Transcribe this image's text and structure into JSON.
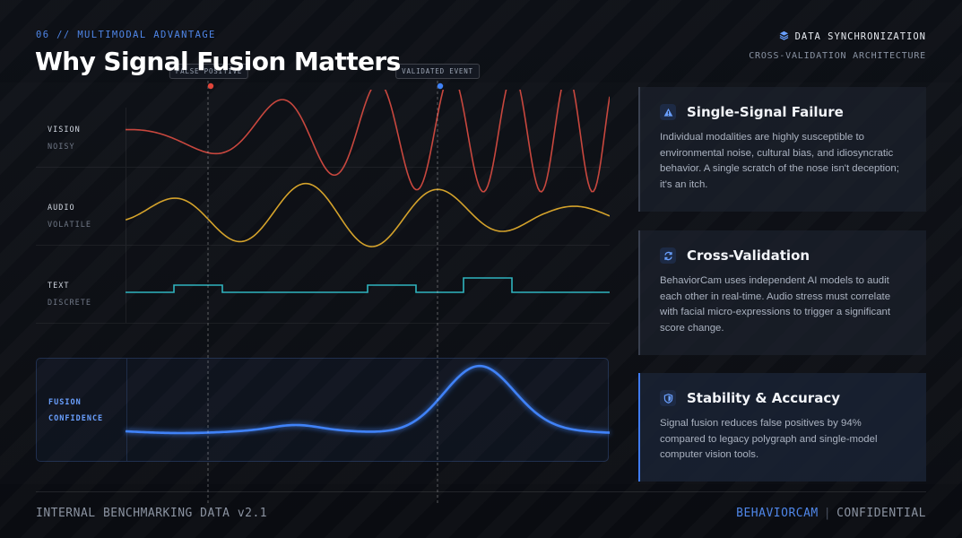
{
  "header": {
    "kicker": "06 // MULTIMODAL ADVANTAGE",
    "title": "Why Signal Fusion Matters",
    "sync_label": "DATA SYNCHRONIZATION",
    "sync_sub": "CROSS-VALIDATION ARCHITECTURE",
    "sync_icon": "layers-icon"
  },
  "lanes": [
    {
      "name": "VISION",
      "sub": "NOISY",
      "color": "#c8473e"
    },
    {
      "name": "AUDIO",
      "sub": "VOLATILE",
      "color": "#d4a22b"
    },
    {
      "name": "TEXT",
      "sub": "DISCRETE",
      "color": "#2fb4bf"
    }
  ],
  "fusion": {
    "name": "FUSION",
    "sub": "CONFIDENCE",
    "color": "#3f82f7"
  },
  "markers": [
    {
      "label": "FALSE POSITIVE",
      "color": "#e0453a"
    },
    {
      "label": "VALIDATED EVENT",
      "color": "#3f82f7"
    }
  ],
  "cards": [
    {
      "title": "Single-Signal Failure",
      "icon": "warning-icon",
      "body": "Individual modalities are highly susceptible to environmental noise, cultural bias, and idiosyncratic behavior. A single scratch of the nose isn't deception; it's an itch."
    },
    {
      "title": "Cross-Validation",
      "icon": "refresh-icon",
      "body": "BehaviorCam uses independent AI models to audit each other in real-time. Audio stress must correlate with facial micro-expressions to trigger a significant score change."
    },
    {
      "title": "Stability & Accuracy",
      "icon": "shield-icon",
      "body": "Signal fusion reduces false positives by 94% compared to legacy polygraph and single-model computer vision tools."
    }
  ],
  "footer": {
    "left": "INTERNAL BENCHMARKING DATA v2.1",
    "brand": "BEHAVIORCAM",
    "separator": "|",
    "right": "CONFIDENTIAL"
  }
}
